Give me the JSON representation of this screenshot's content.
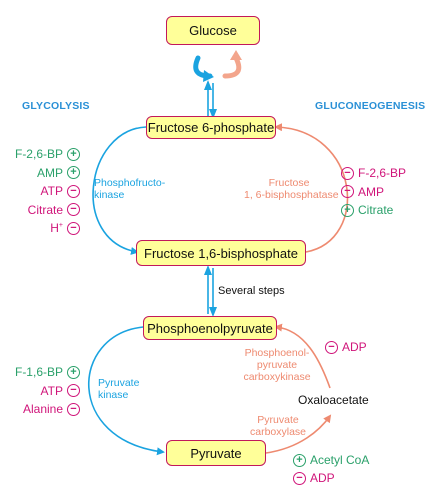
{
  "headers": {
    "left": "GLYCOLYSIS",
    "right": "GLUCONEOGENESIS"
  },
  "metabolites": {
    "glucose": "Glucose",
    "f6p": "Fructose 6-phosphate",
    "f16bp": "Fructose 1,6-bisphosphate",
    "pep": "Phosphoenolpyruvate",
    "pyruvate": "Pyruvate",
    "oxaloacetate": "Oxaloacetate"
  },
  "enzymes": {
    "pfk": [
      "Phosphofructo-",
      "kinase"
    ],
    "fbpase": [
      "Fructose",
      "1, 6-bisphosphatase"
    ],
    "pk": [
      "Pyruvate",
      "kinase"
    ],
    "pepck": [
      "Phosphoenol-",
      "pyruvate",
      "carboxykinase"
    ],
    "pc": [
      "Pyruvate",
      "carboxylase"
    ]
  },
  "steps_label": "Several steps",
  "regulators": {
    "glycolysis_top": [
      {
        "name": "F-2,6-BP",
        "effect": "activator"
      },
      {
        "name": "AMP",
        "effect": "activator"
      },
      {
        "name": "ATP",
        "effect": "inhibitor"
      },
      {
        "name": "Citrate",
        "effect": "inhibitor"
      },
      {
        "name": "H",
        "sup": "+",
        "effect": "inhibitor"
      }
    ],
    "gluconeo_top": [
      {
        "name": "F-2,6-BP",
        "effect": "inhibitor"
      },
      {
        "name": "AMP",
        "effect": "inhibitor"
      },
      {
        "name": "Citrate",
        "effect": "activator"
      }
    ],
    "glycolysis_bottom": [
      {
        "name": "F-1,6-BP",
        "effect": "activator"
      },
      {
        "name": "ATP",
        "effect": "inhibitor"
      },
      {
        "name": "Alanine",
        "effect": "inhibitor"
      }
    ],
    "pepck": [
      {
        "name": "ADP",
        "effect": "inhibitor"
      }
    ],
    "pc": [
      {
        "name": "Acetyl CoA",
        "effect": "activator"
      },
      {
        "name": "ADP",
        "effect": "inhibitor"
      }
    ]
  },
  "symbols": {
    "activator": "+",
    "inhibitor": "−"
  },
  "colors": {
    "glycolysis": "#1aa3e0",
    "gluconeogenesis": "#ee8a70",
    "box_fill": "#ffff99",
    "box_border": "#c2185b",
    "activator": "#2aa06a",
    "inhibitor": "#d0157a"
  }
}
